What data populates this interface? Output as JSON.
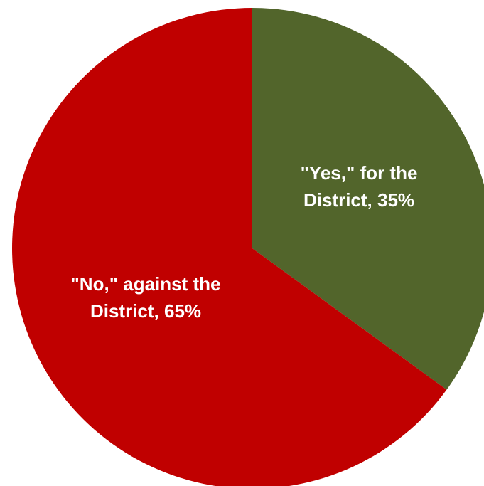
{
  "chart_data": {
    "type": "pie",
    "start_angle_deg": 0,
    "direction": "clockwise",
    "legend": "none",
    "slices": [
      {
        "label_lines": [
          "\"Yes,\" for the",
          "District, 35%"
        ],
        "category": "\"Yes,\" for the District",
        "value": 35,
        "color": "#52652b"
      },
      {
        "label_lines": [
          "\"No,\" against the",
          "District, 65%"
        ],
        "category": "\"No,\" against the District",
        "value": 65,
        "color": "#c00000"
      }
    ]
  }
}
